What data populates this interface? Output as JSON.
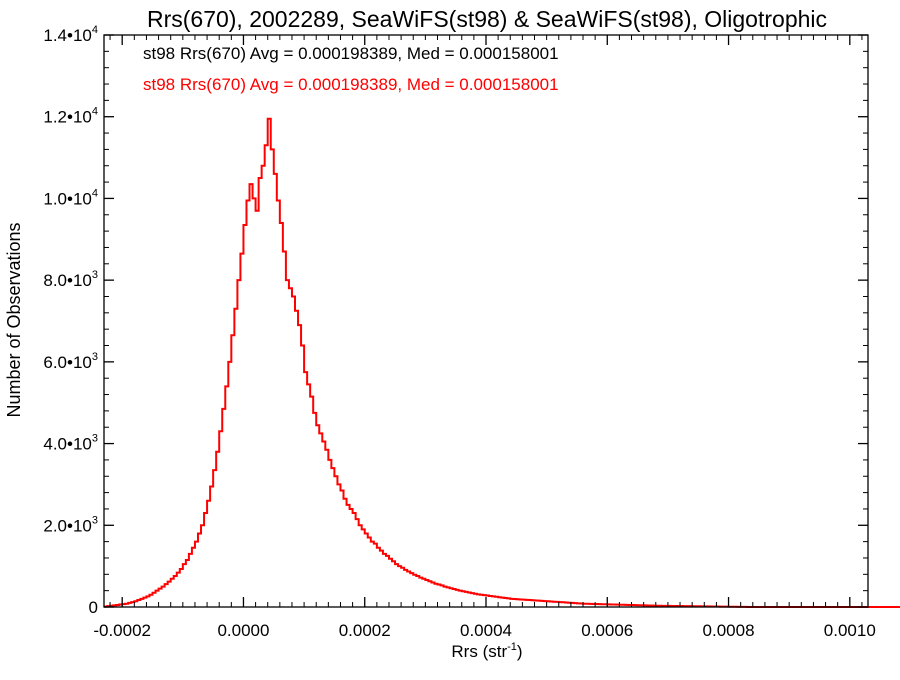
{
  "chart_data": {
    "type": "histogram",
    "title": "Rrs(670), 2002289, SeaWiFS(st98) & SeaWiFS(st98), Oligotrophic",
    "xlabel_main": "Rrs (str",
    "xlabel_sup": "-1",
    "xlabel_close": ")",
    "ylabel": "Number of Observations",
    "xlim": [
      -0.00023,
      0.00103
    ],
    "ylim": [
      0,
      14000
    ],
    "x_ticks": [
      {
        "value": -0.0002,
        "label": "-0.0002"
      },
      {
        "value": 0.0,
        "label": "0.0000"
      },
      {
        "value": 0.0002,
        "label": "0.0002"
      },
      {
        "value": 0.0004,
        "label": "0.0004"
      },
      {
        "value": 0.0006,
        "label": "0.0006"
      },
      {
        "value": 0.0008,
        "label": "0.0008"
      },
      {
        "value": 0.001,
        "label": "0.0010"
      }
    ],
    "y_ticks": [
      {
        "value": 0,
        "label": "0",
        "sup": ""
      },
      {
        "value": 2000,
        "label": "2.0•10",
        "sup": "3"
      },
      {
        "value": 4000,
        "label": "4.0•10",
        "sup": "3"
      },
      {
        "value": 6000,
        "label": "6.0•10",
        "sup": "3"
      },
      {
        "value": 8000,
        "label": "8.0•10",
        "sup": "3"
      },
      {
        "value": 10000,
        "label": "1.0•10",
        "sup": "4"
      },
      {
        "value": 12000,
        "label": "1.2•10",
        "sup": "4"
      },
      {
        "value": 14000,
        "label": "1.4•10",
        "sup": "4"
      }
    ],
    "annotations": [
      {
        "text": "st98 Rrs(670) Avg = 0.000198389, Med = 0.000158001",
        "color": "#000000"
      },
      {
        "text": "st98 Rrs(670) Avg = 0.000198389, Med = 0.000158001",
        "color": "#ff0000"
      }
    ],
    "series": [
      {
        "color": "#ff0000",
        "bin_start": -0.00023,
        "bin_width": 5e-06,
        "counts": [
          10,
          20,
          30,
          40,
          50,
          60,
          70,
          80,
          100,
          120,
          140,
          170,
          200,
          230,
          260,
          300,
          350,
          400,
          450,
          500,
          560,
          620,
          690,
          760,
          840,
          930,
          1050,
          1150,
          1300,
          1450,
          1600,
          1800,
          2000,
          2300,
          2600,
          2950,
          3350,
          3800,
          4300,
          4850,
          5400,
          6000,
          6650,
          7300,
          8000,
          8650,
          9350,
          9950,
          10350,
          10000,
          9700,
          10500,
          10800,
          11300,
          11950,
          11200,
          10600,
          9950,
          9400,
          8700,
          8000,
          7800,
          7600,
          7250,
          6900,
          6400,
          5750,
          5450,
          5150,
          4750,
          4450,
          4250,
          4050,
          3850,
          3600,
          3400,
          3200,
          3000,
          2850,
          2650,
          2500,
          2400,
          2300,
          2150,
          2000,
          1900,
          1800,
          1700,
          1600,
          1550,
          1450,
          1380,
          1300,
          1250,
          1180,
          1120,
          1050,
          1000,
          960,
          910,
          870,
          830,
          790,
          760,
          720,
          690,
          660,
          630,
          600,
          570,
          550,
          530,
          500,
          480,
          460,
          440,
          420,
          400,
          385,
          370,
          355,
          340,
          325,
          310,
          300,
          290,
          280,
          270,
          260,
          250,
          240,
          230,
          220,
          210,
          200,
          195,
          190,
          185,
          180,
          175,
          170,
          165,
          160,
          155,
          150,
          145,
          140,
          135,
          130,
          125,
          120,
          115,
          110,
          105,
          100,
          95,
          90,
          85,
          80,
          78,
          76,
          74,
          72,
          70,
          68,
          66,
          64,
          62,
          60,
          58,
          56,
          54,
          52,
          50,
          48,
          46,
          44,
          42,
          40,
          38,
          36,
          34,
          32,
          30,
          29,
          28,
          27,
          26,
          25,
          24,
          23,
          22,
          21,
          20,
          19,
          18,
          17,
          16,
          15,
          14,
          13,
          12,
          11,
          10,
          9,
          8,
          7,
          6,
          5,
          4,
          3,
          2,
          1,
          1,
          1,
          1,
          1,
          1,
          1,
          1,
          1,
          1,
          1,
          1,
          1,
          1,
          1,
          1,
          1,
          1,
          1,
          1,
          1,
          1,
          1,
          1,
          1,
          1,
          1,
          1,
          1,
          1,
          1,
          1,
          1,
          1,
          1,
          1,
          1,
          1,
          1,
          1,
          1,
          1,
          1,
          1,
          1,
          1,
          1,
          1,
          1,
          1,
          1,
          1
        ]
      }
    ]
  }
}
